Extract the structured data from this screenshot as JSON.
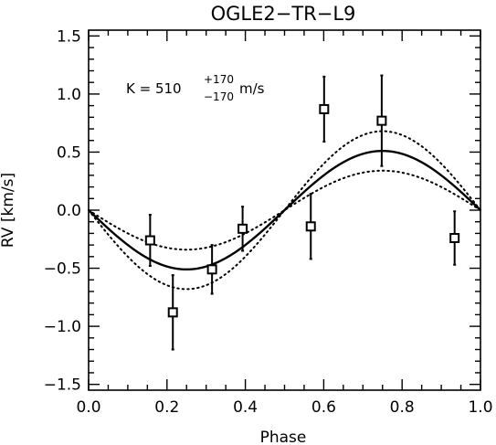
{
  "chart_data": {
    "type": "scatter",
    "title": "OGLE2−TR−L9",
    "xlabel": "Phase",
    "ylabel": "RV [km/s]",
    "xlim": [
      0.0,
      1.0
    ],
    "ylim": [
      -1.55,
      1.55
    ],
    "x_ticks": [
      0.0,
      0.2,
      0.4,
      0.6,
      0.8,
      1.0
    ],
    "x_tick_labels": [
      "0.0",
      "0.2",
      "0.4",
      "0.6",
      "0.8",
      "1.0"
    ],
    "y_ticks": [
      -1.5,
      -1.0,
      -0.5,
      0.0,
      0.5,
      1.0,
      1.5
    ],
    "y_tick_labels": [
      "−1.5",
      "−1.0",
      "−0.5",
      "0.0",
      "0.5",
      "1.0",
      "1.5"
    ],
    "annotation": {
      "prefix": "K = 510",
      "sup": "+170",
      "sub": "−170",
      "unit": "m/s"
    },
    "points": [
      {
        "x": 0.157,
        "y": -0.26,
        "err": 0.22
      },
      {
        "x": 0.215,
        "y": -0.88,
        "err": 0.32
      },
      {
        "x": 0.315,
        "y": -0.51,
        "err": 0.21
      },
      {
        "x": 0.393,
        "y": -0.16,
        "err": 0.19
      },
      {
        "x": 0.567,
        "y": -0.14,
        "err": 0.28
      },
      {
        "x": 0.601,
        "y": 0.87,
        "err": 0.28
      },
      {
        "x": 0.748,
        "y": 0.77,
        "err": 0.39
      },
      {
        "x": 0.934,
        "y": -0.24,
        "err": 0.23
      }
    ],
    "model": {
      "K": 0.51,
      "K_upper": 0.68,
      "K_lower": 0.34,
      "form": "-K*sin(2*pi*phase)"
    },
    "grid": false,
    "legend": "none"
  }
}
